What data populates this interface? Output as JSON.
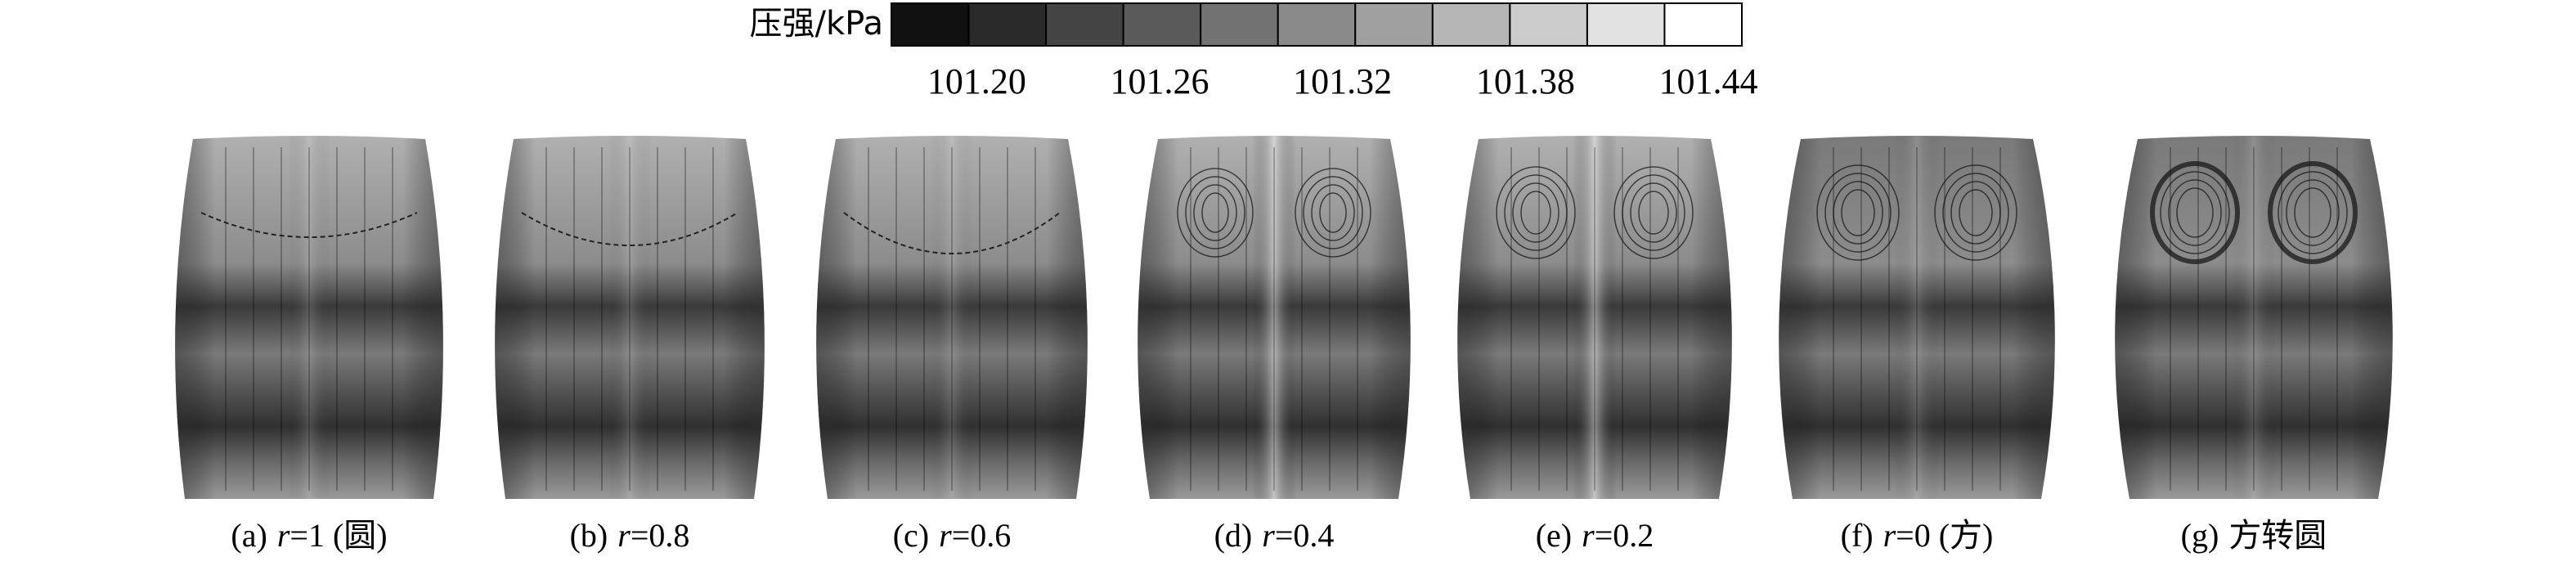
{
  "figure": {
    "colorbar": {
      "label": "压强/kPa",
      "lim": [
        101.172,
        101.451
      ],
      "colors": [
        "#111111",
        "#2a2a2a",
        "#444444",
        "#5a5a5a",
        "#727272",
        "#8a8a8a",
        "#a0a0a0",
        "#b6b6b6",
        "#cccccc",
        "#e2e2e2",
        "#ffffff"
      ],
      "ticks": [
        {
          "value": 101.2,
          "label": "101.20"
        },
        {
          "value": 101.26,
          "label": "101.26"
        },
        {
          "value": 101.32,
          "label": "101.32"
        },
        {
          "value": 101.38,
          "label": "101.38"
        },
        {
          "value": 101.44,
          "label": "101.44"
        }
      ]
    },
    "panels": [
      {
        "tag": "(a)",
        "symbol": "r",
        "text": "=1 (圆)"
      },
      {
        "tag": "(b)",
        "symbol": "r",
        "text": "=0.8"
      },
      {
        "tag": "(c)",
        "symbol": "r",
        "text": "=0.6"
      },
      {
        "tag": "(d)",
        "symbol": "r",
        "text": "=0.4"
      },
      {
        "tag": "(e)",
        "symbol": "r",
        "text": "=0.2"
      },
      {
        "tag": "(f)",
        "symbol": "r",
        "text": "=0 (方)"
      },
      {
        "tag": "(g)",
        "text": "方转圆"
      }
    ]
  }
}
